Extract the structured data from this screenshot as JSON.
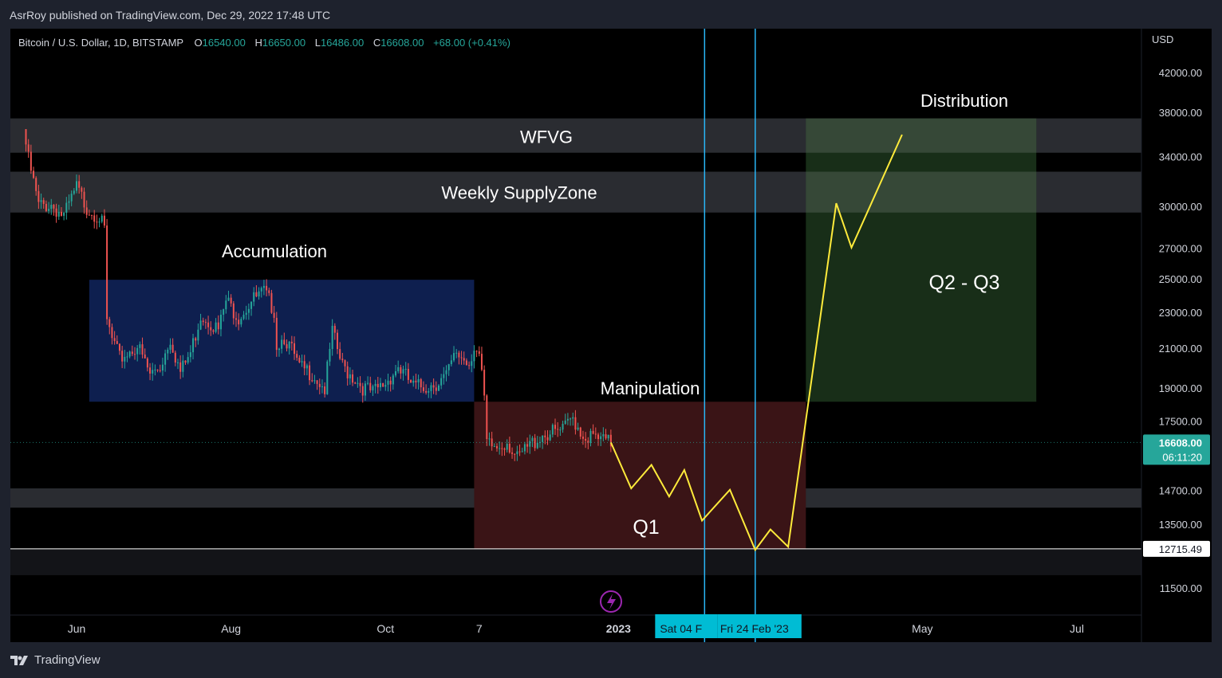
{
  "attribution": "AsrRoy published on TradingView.com, Dec 29, 2022 17:48 UTC",
  "legend": {
    "symbol": "Bitcoin / U.S. Dollar, 1D, BITSTAMP",
    "o_label": "O",
    "o": "16540.00",
    "h_label": "H",
    "h": "16650.00",
    "l_label": "L",
    "l": "16486.00",
    "c_label": "C",
    "c": "16608.00",
    "change": "+68.00 (+0.41%)"
  },
  "footer": {
    "brand": "TradingView"
  },
  "colors": {
    "up": "#26a69a",
    "down": "#ef5350",
    "legend_value": "#26a69a",
    "projection": "#ffeb3b",
    "vline": "#29b6f6",
    "accumulation": "#0e1f4f",
    "manipulation": "#3a1416",
    "distribution": "#1c361c"
  },
  "chart_data": {
    "type": "candlestick",
    "currency": "USD",
    "scale": "log",
    "ylim": [
      11000,
      46000
    ],
    "price_ticks": [
      "42000.00",
      "38000.00",
      "34000.00",
      "30000.00",
      "27000.00",
      "25000.00",
      "23000.00",
      "21000.00",
      "19000.00",
      "17500.00",
      "14700.00",
      "13500.00",
      "11500.00"
    ],
    "time_ticks": [
      {
        "label": "Jun",
        "date": "2022-06-01"
      },
      {
        "label": "Aug",
        "date": "2022-08-01"
      },
      {
        "label": "Oct",
        "date": "2022-10-01"
      },
      {
        "label": "7",
        "date": "2022-11-07"
      },
      {
        "label": "2023",
        "date": "2023-01-01"
      },
      {
        "label": "May",
        "date": "2023-05-01"
      },
      {
        "label": "Jul",
        "date": "2023-07-01"
      }
    ],
    "last_price": {
      "price": "16608.00",
      "countdown": "06:11:20"
    },
    "level_label": "12715.49",
    "level": 12715.49,
    "vlines": [
      {
        "date": "2023-02-04",
        "label": "Sat 04 F"
      },
      {
        "date": "2023-02-24",
        "label": "Fri 24 Feb '23"
      }
    ],
    "close_series": {
      "dates": [
        "2022-05-11",
        "2022-05-13",
        "2022-05-17",
        "2022-05-22",
        "2022-05-27",
        "2022-06-01",
        "2022-06-05",
        "2022-06-10",
        "2022-06-12",
        "2022-06-13",
        "2022-06-15",
        "2022-06-18",
        "2022-06-21",
        "2022-06-25",
        "2022-06-30",
        "2022-07-04",
        "2022-07-08",
        "2022-07-12",
        "2022-07-16",
        "2022-07-20",
        "2022-07-24",
        "2022-07-27",
        "2022-07-30",
        "2022-08-04",
        "2022-08-09",
        "2022-08-14",
        "2022-08-18",
        "2022-08-19",
        "2022-08-22",
        "2022-08-25",
        "2022-08-28",
        "2022-09-02",
        "2022-09-07",
        "2022-09-10",
        "2022-09-13",
        "2022-09-14",
        "2022-09-19",
        "2022-09-22",
        "2022-09-26",
        "2022-10-01",
        "2022-10-06",
        "2022-10-12",
        "2022-10-16",
        "2022-10-21",
        "2022-10-25",
        "2022-10-29",
        "2022-11-03",
        "2022-11-05",
        "2022-11-07",
        "2022-11-09",
        "2022-11-10",
        "2022-11-14",
        "2022-11-18",
        "2022-11-22",
        "2022-11-27",
        "2022-12-02",
        "2022-12-06",
        "2022-12-10",
        "2022-12-14",
        "2022-12-18",
        "2022-12-22",
        "2022-12-26",
        "2022-12-29"
      ],
      "close": [
        36500,
        33800,
        30100,
        30200,
        29300,
        31500,
        30000,
        29300,
        28200,
        22500,
        21500,
        20500,
        20800,
        21200,
        19700,
        20100,
        21600,
        19800,
        20800,
        22900,
        22500,
        22000,
        23700,
        22800,
        23700,
        24200,
        23200,
        21200,
        21700,
        20900,
        20000,
        19800,
        19000,
        21900,
        20500,
        20100,
        19500,
        19100,
        18800,
        19300,
        20100,
        19100,
        19100,
        19300,
        19600,
        20800,
        20300,
        21200,
        20600,
        18500,
        16500,
        16400,
        16700,
        15900,
        16500,
        16950,
        17000,
        17100,
        17700,
        16900,
        16800,
        16650,
        16608
      ]
    },
    "projection": {
      "dates": [
        "2022-12-29",
        "2023-01-06",
        "2023-01-14",
        "2023-01-21",
        "2023-01-27",
        "2023-02-03",
        "2023-02-14",
        "2023-02-24",
        "2023-03-02",
        "2023-03-09",
        "2023-03-28",
        "2023-04-03",
        "2023-04-23"
      ],
      "price": [
        16608,
        14800,
        15700,
        14500,
        15500,
        13650,
        14750,
        12680,
        13350,
        12780,
        30300,
        27100,
        36000
      ]
    },
    "zones": [
      {
        "label": "WFVG",
        "price_top": 37500,
        "price_bottom": 34400
      },
      {
        "label": "Weekly SupplyZone",
        "price_top": 32800,
        "price_bottom": 29600
      },
      {
        "label": "",
        "price_top": 14800,
        "price_bottom": 14100
      },
      {
        "label": "",
        "price_top": 12700,
        "price_bottom": 11900
      }
    ],
    "boxes": [
      {
        "label": "Accumulation",
        "date_start": "2022-06-06",
        "date_end": "2022-11-05",
        "price_top": 25000,
        "price_bottom": 18400
      },
      {
        "label": "Manipulation",
        "date_start": "2022-11-05",
        "date_end": "2023-03-16",
        "price_top": 18400,
        "price_bottom": 12715.49
      },
      {
        "label": "Q2 - Q3",
        "date_start": "2023-03-16",
        "date_end": "2023-06-15",
        "price_top": 37500,
        "price_bottom": 18400
      }
    ],
    "annotations": {
      "distribution": "Distribution",
      "q1": "Q1"
    }
  }
}
